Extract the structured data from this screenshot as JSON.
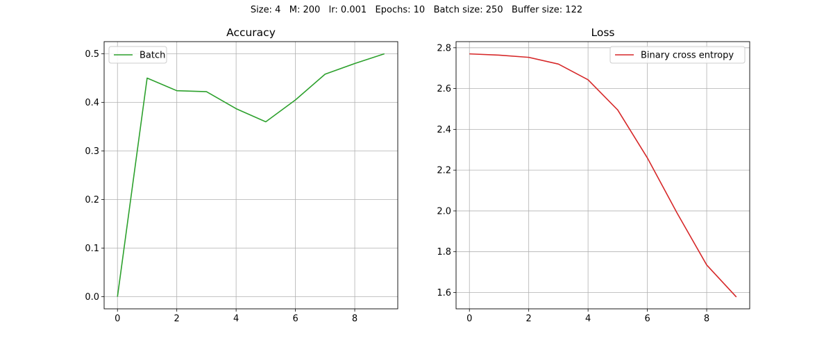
{
  "suptitle": "Size: 4   M: 200   lr: 0.001   Epochs: 10   Batch size: 250   Buffer size: 122",
  "chart_data": [
    {
      "type": "line",
      "title": "Accuracy",
      "xlabel": "",
      "ylabel": "",
      "x": [
        0,
        1,
        2,
        3,
        4,
        5,
        6,
        7,
        8,
        9
      ],
      "series": [
        {
          "name": "Batch",
          "color": "#2ca02c",
          "values": [
            0.0,
            0.45,
            0.424,
            0.422,
            0.387,
            0.36,
            0.405,
            0.458,
            0.48,
            0.5
          ]
        }
      ],
      "xticks": [
        0,
        2,
        4,
        6,
        8
      ],
      "xtick_labels": [
        "0",
        "2",
        "4",
        "6",
        "8"
      ],
      "yticks": [
        0.0,
        0.1,
        0.2,
        0.3,
        0.4,
        0.5
      ],
      "ytick_labels": [
        "0.0",
        "0.1",
        "0.2",
        "0.3",
        "0.4",
        "0.5"
      ],
      "xlim": [
        -0.45,
        9.45
      ],
      "ylim": [
        -0.025,
        0.525
      ],
      "grid": true,
      "legend": "upper left"
    },
    {
      "type": "line",
      "title": "Loss",
      "xlabel": "",
      "ylabel": "",
      "x": [
        0,
        1,
        2,
        3,
        4,
        5,
        6,
        7,
        8,
        9
      ],
      "series": [
        {
          "name": "Binary cross entropy",
          "color": "#d62728",
          "values": [
            2.77,
            2.764,
            2.753,
            2.72,
            2.643,
            2.495,
            2.26,
            1.99,
            1.735,
            1.578
          ]
        }
      ],
      "xticks": [
        0,
        2,
        4,
        6,
        8
      ],
      "xtick_labels": [
        "0",
        "2",
        "4",
        "6",
        "8"
      ],
      "yticks": [
        1.6,
        1.8,
        2.0,
        2.2,
        2.4,
        2.6,
        2.8
      ],
      "ytick_labels": [
        "1.6",
        "1.8",
        "2.0",
        "2.2",
        "2.4",
        "2.6",
        "2.8"
      ],
      "xlim": [
        -0.45,
        9.45
      ],
      "ylim": [
        1.52,
        2.83
      ],
      "grid": true,
      "legend": "upper right"
    }
  ]
}
